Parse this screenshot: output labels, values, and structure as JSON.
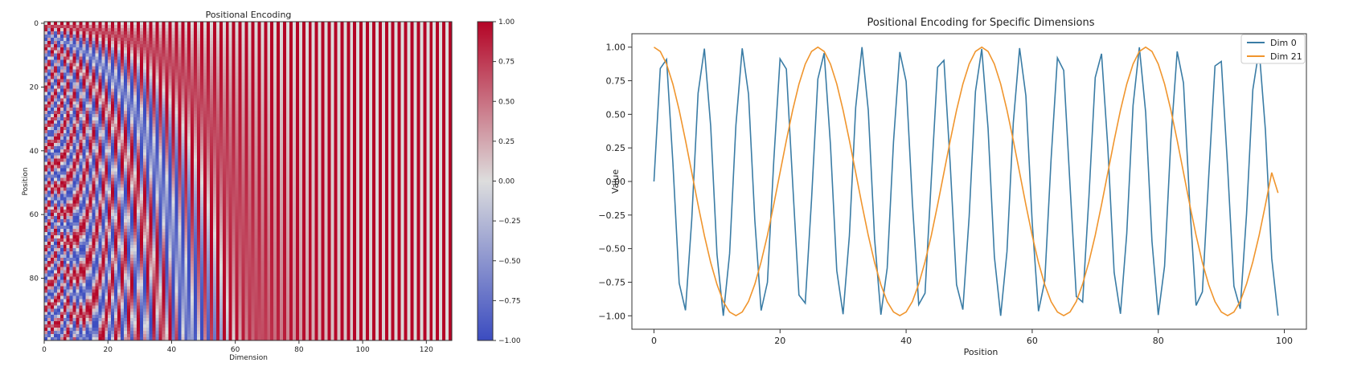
{
  "chart_data": [
    {
      "type": "heatmap",
      "title": "Positional Encoding",
      "xlabel": "Dimension",
      "ylabel": "Position",
      "rows": 100,
      "cols": 128,
      "d_model": 128,
      "value_formula": "PE(pos, 2i) = sin(pos / 10000^(2i/128)); PE(pos, 2i+1) = cos(pos / 10000^(2i/128))",
      "colormap": "coolwarm",
      "color_min": "#3b4cc0",
      "color_mid": "#dddddd",
      "color_max": "#b40426",
      "xticks": [
        "0",
        "20",
        "40",
        "60",
        "80",
        "100",
        "120"
      ],
      "xtick_values": [
        0,
        20,
        40,
        60,
        80,
        100,
        120
      ],
      "yticks": [
        "0",
        "20",
        "40",
        "60",
        "80"
      ],
      "ytick_values": [
        0,
        20,
        40,
        60,
        80
      ],
      "colorbar": {
        "vmin": -1.0,
        "vmax": 1.0,
        "ticks": [
          "1.00",
          "0.75",
          "0.50",
          "0.25",
          "0.00",
          "−0.25",
          "−0.50",
          "−0.75",
          "−1.00"
        ],
        "tick_values": [
          1.0,
          0.75,
          0.5,
          0.25,
          0.0,
          -0.25,
          -0.5,
          -0.75,
          -1.0
        ]
      }
    },
    {
      "type": "line",
      "title": "Positional Encoding for Specific Dimensions",
      "xlabel": "Position",
      "ylabel": "Value",
      "xlim": [
        -3.5,
        103.5
      ],
      "ylim": [
        -1.1,
        1.1
      ],
      "xticks": [
        "0",
        "20",
        "40",
        "60",
        "80",
        "100"
      ],
      "xtick_values": [
        0,
        20,
        40,
        60,
        80,
        100
      ],
      "yticks": [
        "1.00",
        "0.75",
        "0.50",
        "0.25",
        "0.00",
        "−0.25",
        "−0.50",
        "−0.75",
        "−1.00"
      ],
      "ytick_values": [
        1.0,
        0.75,
        0.5,
        0.25,
        0.0,
        -0.25,
        -0.5,
        -0.75,
        -1.0
      ],
      "legend_position": "top-right",
      "series": [
        {
          "name": "Dim 0",
          "color": "#3a7ca5",
          "values": [
            0.0,
            0.841,
            0.909,
            0.141,
            -0.757,
            -0.959,
            -0.279,
            0.657,
            0.989,
            0.412,
            -0.544,
            -1.0,
            -0.537,
            0.42,
            0.991,
            0.65,
            -0.288,
            -0.961,
            -0.751,
            0.15,
            0.913,
            0.837,
            -0.009,
            -0.846,
            -0.906,
            -0.132,
            0.763,
            0.956,
            0.271,
            -0.664,
            -0.988,
            -0.404,
            0.551,
            1.0,
            0.529,
            -0.428,
            -0.992,
            -0.644,
            0.296,
            0.964,
            0.745,
            -0.159,
            -0.917,
            -0.832,
            0.018,
            0.851,
            0.902,
            0.124,
            -0.768,
            -0.954,
            -0.262,
            0.67,
            0.987,
            0.396,
            -0.559,
            -1.0,
            -0.522,
            0.436,
            0.993,
            0.637,
            -0.305,
            -0.966,
            -0.739,
            0.167,
            0.92,
            0.827,
            -0.027,
            -0.856,
            -0.898,
            -0.115,
            0.774,
            0.951,
            0.254,
            -0.677,
            -0.985,
            -0.388,
            0.566,
            0.999,
            0.514,
            -0.444,
            -0.994,
            -0.63,
            0.313,
            0.968,
            0.733,
            -0.176,
            -0.923,
            -0.822,
            0.035,
            0.86,
            0.894,
            0.106,
            -0.779,
            -0.948,
            -0.245,
            0.683,
            0.984,
            0.38,
            -0.573,
            -0.999
          ]
        },
        {
          "name": "Dim 21",
          "color": "#f0952d",
          "values": [
            1.0,
            0.968,
            0.874,
            0.725,
            0.531,
            0.306,
            0.066,
            -0.175,
            -0.403,
            -0.604,
            -0.767,
            -0.895,
            -0.972,
            -0.999,
            -0.972,
            -0.893,
            -0.765,
            -0.598,
            -0.401,
            -0.173,
            0.066,
            0.305,
            0.53,
            0.725,
            0.874,
            0.968,
            1.0,
            0.968,
            0.874,
            0.726,
            0.531,
            0.306,
            0.067,
            -0.174,
            -0.402,
            -0.604,
            -0.769,
            -0.895,
            -0.972,
            -0.999,
            -0.972,
            -0.893,
            -0.764,
            -0.598,
            -0.401,
            -0.173,
            0.066,
            0.305,
            0.53,
            0.725,
            0.874,
            0.968,
            1.0,
            0.968,
            0.874,
            0.726,
            0.531,
            0.306,
            0.067,
            -0.174,
            -0.402,
            -0.604,
            -0.769,
            -0.895,
            -0.972,
            -0.999,
            -0.972,
            -0.893,
            -0.764,
            -0.598,
            -0.401,
            -0.173,
            0.066,
            0.305,
            0.53,
            0.725,
            0.874,
            0.968,
            1.0,
            0.968,
            0.874,
            0.726,
            0.531,
            0.306,
            0.067,
            -0.174,
            -0.402,
            -0.604,
            -0.769,
            -0.895,
            -0.972,
            -0.999,
            -0.972,
            -0.893,
            -0.764,
            -0.598,
            -0.401,
            -0.173,
            0.066,
            -0.085
          ]
        }
      ]
    }
  ]
}
